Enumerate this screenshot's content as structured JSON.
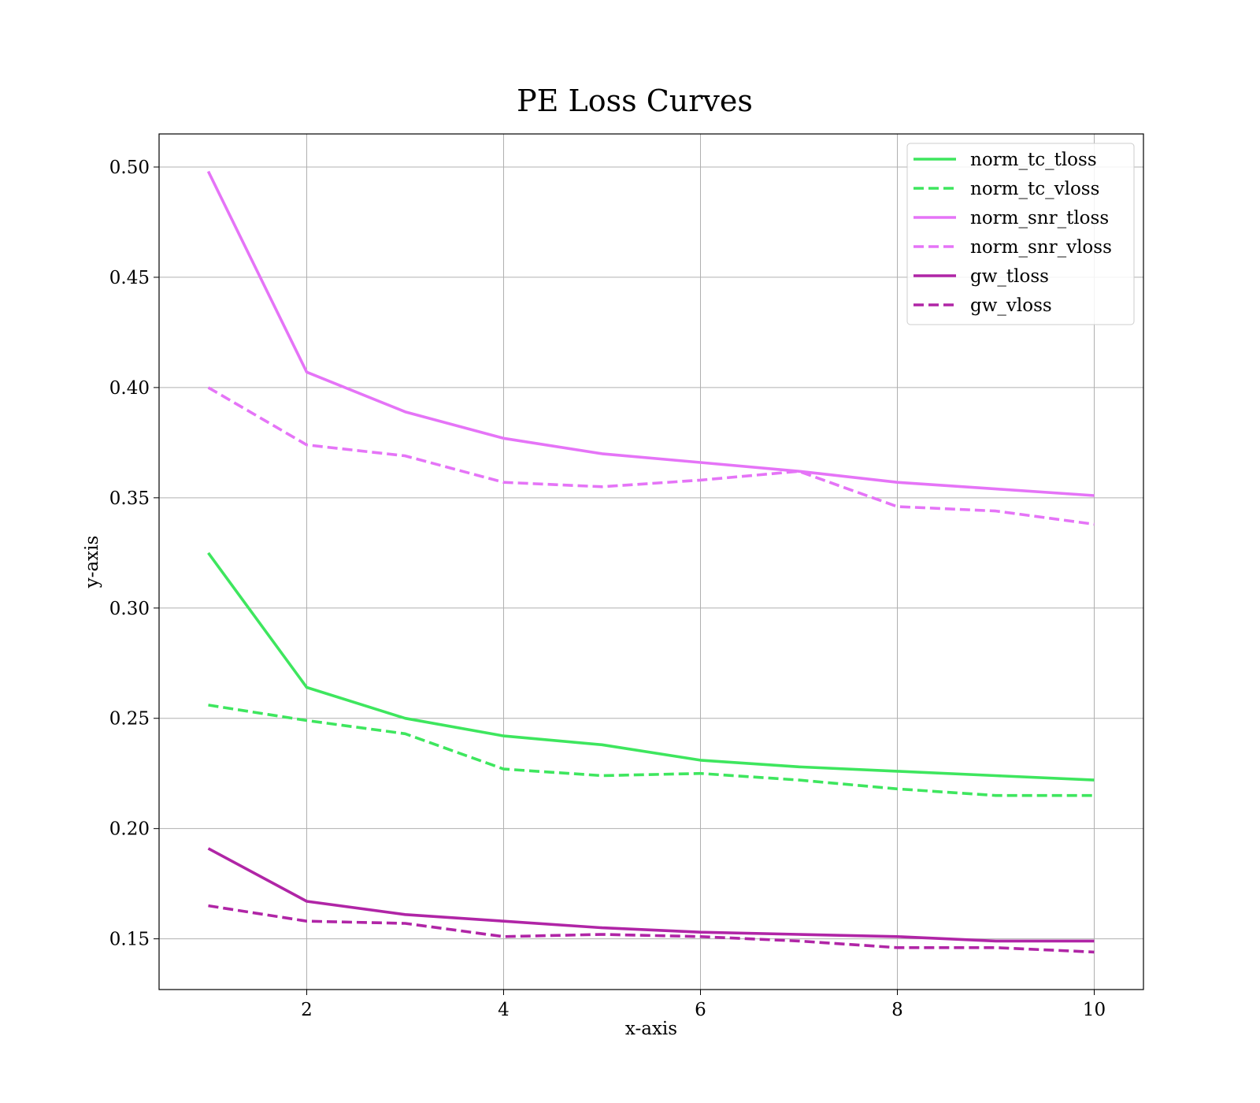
{
  "chart_data": {
    "type": "line",
    "title": "PE Loss Curves",
    "xlabel": "x-axis",
    "ylabel": "y-axis",
    "xlim": [
      0.5,
      10.5
    ],
    "ylim": [
      0.127,
      0.515
    ],
    "xticks": [
      2,
      4,
      6,
      8,
      10
    ],
    "xtick_labels": [
      "2",
      "4",
      "6",
      "8",
      "10"
    ],
    "yticks": [
      0.15,
      0.2,
      0.25,
      0.3,
      0.35,
      0.4,
      0.45,
      0.5
    ],
    "ytick_labels": [
      "0.15",
      "0.20",
      "0.25",
      "0.30",
      "0.35",
      "0.40",
      "0.45",
      "0.50"
    ],
    "grid": true,
    "legend_position": "top-right",
    "x": [
      1,
      2,
      3,
      4,
      5,
      6,
      7,
      8,
      9,
      10
    ],
    "series": [
      {
        "name": "norm_tc_tloss",
        "color": "#3ee65e",
        "dash": "solid",
        "values": [
          0.325,
          0.264,
          0.25,
          0.242,
          0.238,
          0.231,
          0.228,
          0.226,
          0.224,
          0.222
        ]
      },
      {
        "name": "norm_tc_vloss",
        "color": "#3ee65e",
        "dash": "dashed",
        "values": [
          0.256,
          0.249,
          0.243,
          0.227,
          0.224,
          0.225,
          0.222,
          0.218,
          0.215,
          0.215
        ]
      },
      {
        "name": "norm_snr_tloss",
        "color": "#e574f7",
        "dash": "solid",
        "values": [
          0.498,
          0.407,
          0.389,
          0.377,
          0.37,
          0.366,
          0.362,
          0.357,
          0.354,
          0.351
        ]
      },
      {
        "name": "norm_snr_vloss",
        "color": "#e574f7",
        "dash": "dashed",
        "values": [
          0.4,
          0.374,
          0.369,
          0.357,
          0.355,
          0.358,
          0.362,
          0.346,
          0.344,
          0.338
        ]
      },
      {
        "name": "gw_tloss",
        "color": "#b025a6",
        "dash": "solid",
        "values": [
          0.191,
          0.167,
          0.161,
          0.158,
          0.155,
          0.153,
          0.152,
          0.151,
          0.149,
          0.149
        ]
      },
      {
        "name": "gw_vloss",
        "color": "#b025a6",
        "dash": "dashed",
        "values": [
          0.165,
          0.158,
          0.157,
          0.151,
          0.152,
          0.151,
          0.149,
          0.146,
          0.146,
          0.144
        ]
      }
    ]
  }
}
